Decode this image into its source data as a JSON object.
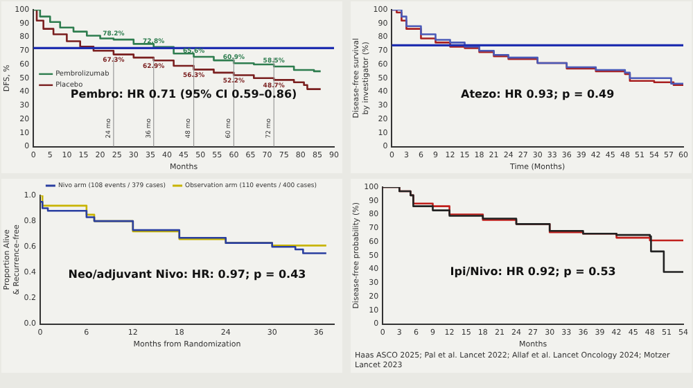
{
  "chart_data": [
    {
      "type": "step",
      "xlabel": "Months",
      "ylabel": "DFS, %",
      "xlim": [
        0,
        90
      ],
      "xticks": [
        0,
        5,
        10,
        15,
        20,
        25,
        30,
        35,
        40,
        45,
        50,
        55,
        60,
        65,
        70,
        75,
        80,
        85,
        90
      ],
      "ylim": [
        0,
        100
      ],
      "yticks": [
        0,
        10,
        20,
        30,
        40,
        50,
        60,
        70,
        80,
        90,
        100
      ],
      "legend": "center left",
      "annotations": [
        "Pembro: HR 0.71 (95% CI 0.59–0.86)"
      ],
      "ref_lines": [
        {
          "axis": "y",
          "value": 72,
          "color": "#1f2fb0"
        },
        {
          "axis": "x",
          "value": 24,
          "label": "24 mo",
          "color": "#9a9a9a"
        },
        {
          "axis": "x",
          "value": 36,
          "label": "36 mo",
          "color": "#9a9a9a"
        },
        {
          "axis": "x",
          "value": 48,
          "label": "48 mo",
          "color": "#9a9a9a"
        },
        {
          "axis": "x",
          "value": 60,
          "label": "60 mo",
          "color": "#9a9a9a"
        },
        {
          "axis": "x",
          "value": 72,
          "label": "72 mo",
          "color": "#9a9a9a"
        }
      ],
      "series": [
        {
          "name": "Pembrolizumab",
          "color": "#2e7d4f",
          "x": [
            0,
            2,
            5,
            8,
            12,
            16,
            20,
            24,
            30,
            36,
            42,
            48,
            54,
            60,
            66,
            72,
            78,
            84,
            86
          ],
          "values": [
            100,
            95,
            91,
            87,
            84,
            81,
            79,
            78.2,
            75,
            72.8,
            68,
            65.6,
            63,
            60.9,
            60,
            58.5,
            56,
            55,
            55
          ],
          "value_labels": [
            null,
            null,
            null,
            null,
            null,
            null,
            null,
            "78.2%",
            null,
            "72.8%",
            null,
            "65.6%",
            null,
            "60.9%",
            null,
            "58.5%",
            null,
            null,
            null
          ]
        },
        {
          "name": "Placebo",
          "color": "#7a1f1f",
          "x": [
            0,
            1,
            3,
            6,
            10,
            14,
            18,
            24,
            30,
            36,
            42,
            48,
            54,
            60,
            66,
            72,
            78,
            81,
            82,
            86
          ],
          "values": [
            100,
            92,
            86,
            82,
            77,
            73,
            70,
            67.3,
            65,
            62.9,
            59,
            56.3,
            54,
            52.2,
            50,
            48.7,
            47,
            45,
            42,
            42
          ],
          "value_labels": [
            null,
            null,
            null,
            null,
            null,
            null,
            null,
            "67.3%",
            null,
            "62.9%",
            null,
            "56.3%",
            null,
            "52.2%",
            null,
            "48.7%",
            null,
            null,
            null,
            null
          ]
        }
      ]
    },
    {
      "type": "step",
      "xlabel": "Time (Months)",
      "ylabel": "Disease-free survival by investigator (%)",
      "xlim": [
        0,
        60
      ],
      "xticks": [
        0,
        3,
        6,
        9,
        12,
        15,
        18,
        21,
        24,
        27,
        30,
        33,
        36,
        39,
        42,
        45,
        48,
        51,
        54,
        57,
        60
      ],
      "ylim": [
        0,
        100
      ],
      "yticks": [
        0,
        10,
        20,
        30,
        40,
        50,
        60,
        70,
        80,
        90,
        100
      ],
      "annotations": [
        "Atezo: HR 0.93; p = 0.49"
      ],
      "ref_lines": [
        {
          "axis": "y",
          "value": 74,
          "color": "#1f2fb0"
        }
      ],
      "series": [
        {
          "color": "#4a5ab8",
          "x": [
            0,
            1,
            2,
            3,
            6,
            9,
            12,
            15,
            18,
            21,
            24,
            30,
            36,
            42,
            48,
            49,
            57,
            57.5,
            60
          ],
          "values": [
            100,
            100,
            95,
            88,
            82,
            78,
            76,
            73,
            70,
            67,
            65,
            61,
            58,
            56,
            54,
            50,
            50,
            46,
            46
          ]
        },
        {
          "color": "#a82020",
          "x": [
            0,
            1,
            2,
            3,
            6,
            9,
            12,
            15,
            18,
            21,
            24,
            30,
            36,
            42,
            48,
            49,
            54,
            58,
            60
          ],
          "values": [
            100,
            98,
            92,
            86,
            79,
            76,
            73,
            72,
            69,
            66,
            64,
            61,
            57,
            55,
            53,
            48,
            47,
            45,
            45
          ]
        }
      ]
    },
    {
      "type": "step",
      "xlabel": "Months from Randomization",
      "ylabel": "Proportion Alive & Recurrence–free",
      "xlim": [
        0,
        38
      ],
      "xticks": [
        0,
        6,
        12,
        18,
        24,
        30,
        36
      ],
      "ylim": [
        0,
        1
      ],
      "yticks": [
        {
          "value": 0,
          "label": "0.0"
        },
        {
          "value": 0.2,
          "label": "0.2"
        },
        {
          "value": 0.4,
          "label": "0.4"
        },
        {
          "value": 0.6,
          "label": "0.6"
        },
        {
          "value": 0.8,
          "label": "0.8"
        },
        {
          "value": 1,
          "label": "1.0"
        }
      ],
      "legend": "top",
      "annotations": [
        "Neo/adjuvant Nivo: HR: 0.97; p = 0.43"
      ],
      "series": [
        {
          "name": "Nivo arm (108 events / 379 cases)",
          "color": "#2a3fa0",
          "x": [
            0,
            0.3,
            1,
            6,
            7,
            12,
            18,
            24,
            30,
            33,
            34,
            37
          ],
          "values": [
            0.95,
            0.9,
            0.88,
            0.83,
            0.8,
            0.73,
            0.67,
            0.63,
            0.6,
            0.58,
            0.55,
            0.55
          ]
        },
        {
          "name": "Observation arm (110 events / 400 cases)",
          "color": "#c8b400",
          "x": [
            0,
            0.3,
            6,
            7,
            12,
            18,
            24,
            30,
            37
          ],
          "values": [
            1,
            0.92,
            0.85,
            0.8,
            0.72,
            0.66,
            0.63,
            0.61,
            0.61
          ]
        }
      ]
    },
    {
      "type": "step",
      "xlabel": "Months",
      "ylabel": "Disease-free probability (%)",
      "xlim": [
        0,
        54
      ],
      "xticks": [
        0,
        3,
        6,
        9,
        12,
        15,
        18,
        21,
        24,
        27,
        30,
        33,
        36,
        39,
        42,
        45,
        48,
        51,
        54
      ],
      "ylim": [
        0,
        100
      ],
      "yticks": [
        0,
        10,
        20,
        30,
        40,
        50,
        60,
        70,
        80,
        90,
        100
      ],
      "annotations": [
        "Ipi/Nivo: HR 0.92; p = 0.53",
        "Haas ASCO 2025; Pal et al. Lancet 2022; Allaf et al. Lancet Oncology 2024; Motzer Lancet 2023"
      ],
      "series": [
        {
          "color": "#222222",
          "x": [
            0,
            3,
            5,
            5.5,
            9,
            12,
            18,
            24,
            30,
            36,
            42,
            48,
            48.2,
            50,
            50.5,
            54
          ],
          "values": [
            100,
            97,
            94,
            86,
            83,
            79,
            77,
            73,
            68,
            66,
            65,
            64,
            53,
            53,
            38,
            38
          ]
        },
        {
          "color": "#c0201c",
          "x": [
            0,
            3,
            5,
            5.5,
            9,
            12,
            18,
            24,
            30,
            36,
            42,
            48,
            54
          ],
          "values": [
            100,
            97,
            94,
            88,
            86,
            80,
            76,
            73,
            67,
            66,
            63,
            61,
            61
          ]
        }
      ]
    }
  ]
}
